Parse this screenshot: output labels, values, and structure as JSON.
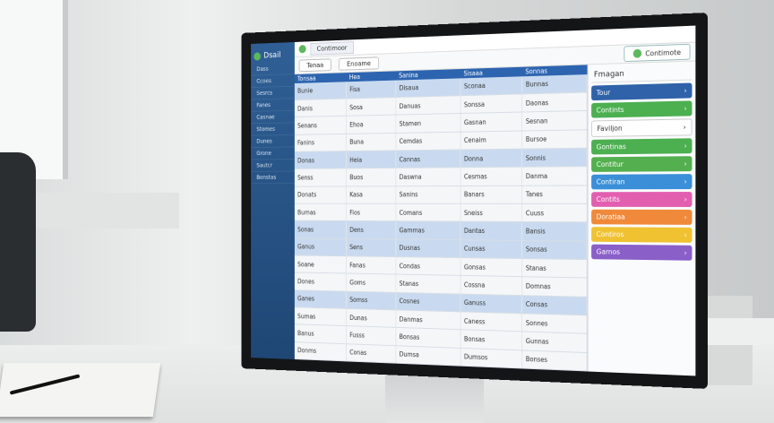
{
  "app": {
    "logo": "Dsail",
    "tab": "Contimoor",
    "search": "Tenaa",
    "filter": "Enoame",
    "action_button": "Contimote"
  },
  "sidebar": {
    "items": [
      "Dass",
      "Ccoes",
      "Sesrcs",
      "Fanes",
      "Casnae",
      "Stomes",
      "Dunes",
      "Grone",
      "Sautcr",
      "Bonstas"
    ]
  },
  "table": {
    "header": [
      "Tonsaa",
      "Hea",
      "Sanina",
      "Sisaaa",
      "Sonnas"
    ],
    "rows": [
      [
        "Bunie",
        "Fisa",
        "Disaua",
        "Sconaa",
        "Bunnas"
      ],
      [
        "Danis",
        "Sosa",
        "Danuas",
        "Sonssa",
        "Daonas"
      ],
      [
        "Senans",
        "Ehoa",
        "Stamen",
        "Gasnan",
        "Sesnan"
      ],
      [
        "Fanins",
        "Buna",
        "Cemdas",
        "Cenaim",
        "Bursoe"
      ],
      [
        "Donas",
        "Heia",
        "Cannas",
        "Donna",
        "Sonnis"
      ],
      [
        "Senss",
        "Buos",
        "Daswna",
        "Cesmas",
        "Danma"
      ],
      [
        "Donats",
        "Kasa",
        "Sanins",
        "Banars",
        "Tanes"
      ],
      [
        "Bumas",
        "Fios",
        "Comans",
        "Sneiss",
        "Cuuss"
      ],
      [
        "Sonas",
        "Dens",
        "Gammas",
        "Dantas",
        "Bansis"
      ],
      [
        "Ganus",
        "Sens",
        "Dusnas",
        "Cunsas",
        "Sonsas"
      ],
      [
        "Soane",
        "Fanas",
        "Condas",
        "Gonsas",
        "Stanas"
      ],
      [
        "Dones",
        "Goms",
        "Stanas",
        "Cossna",
        "Domnas"
      ],
      [
        "Ganes",
        "Somss",
        "Cosnes",
        "Ganuss",
        "Consas"
      ],
      [
        "Sumas",
        "Dunas",
        "Danmas",
        "Caness",
        "Sonnes"
      ],
      [
        "Banus",
        "Fusss",
        "Bonsas",
        "Bonsas",
        "Gunnas"
      ],
      [
        "Donms",
        "Conas",
        "Dumsa",
        "Dumsos",
        "Bonses"
      ]
    ]
  },
  "panel": {
    "title": "Fmagan",
    "buttons": [
      "Tour",
      "Contints",
      "Faviljon",
      "Gontinas",
      "Contitur",
      "Contiran",
      "Contits",
      "Doratiaa",
      "Contiros",
      "Garnos"
    ]
  }
}
